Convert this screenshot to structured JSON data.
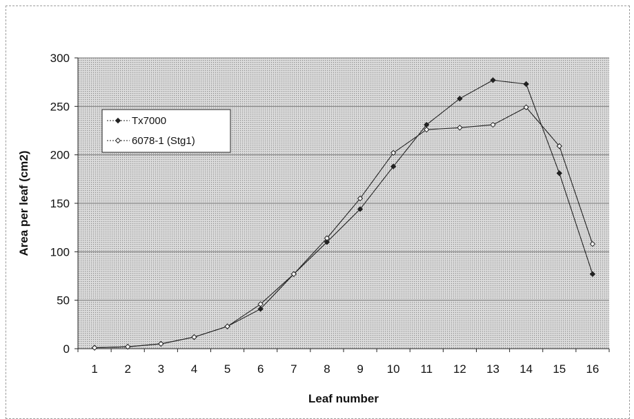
{
  "chart_data": {
    "type": "line",
    "xlabel": "Leaf number",
    "ylabel": "Area per leaf (cm2)",
    "x": [
      1,
      2,
      3,
      4,
      5,
      6,
      7,
      8,
      9,
      10,
      11,
      12,
      13,
      14,
      15,
      16
    ],
    "ylim": [
      0,
      300
    ],
    "yticks": [
      0,
      50,
      100,
      150,
      200,
      250,
      300
    ],
    "grid": "horizontal",
    "legend_position": "top-left",
    "series": [
      {
        "name": "Tx7000",
        "marker": "filled-diamond",
        "values": [
          1,
          2,
          5,
          12,
          23,
          41,
          77,
          110,
          144,
          188,
          231,
          258,
          277,
          273,
          181,
          77
        ]
      },
      {
        "name": "6078-1 (Stg1)",
        "marker": "hollow-diamond",
        "values": [
          1,
          2,
          5,
          12,
          23,
          46,
          77,
          114,
          155,
          202,
          226,
          228,
          231,
          249,
          209,
          108
        ]
      }
    ],
    "colors": {
      "plot_background": "#d2d2d2",
      "gridline": "#777777",
      "line": "#222222"
    }
  }
}
